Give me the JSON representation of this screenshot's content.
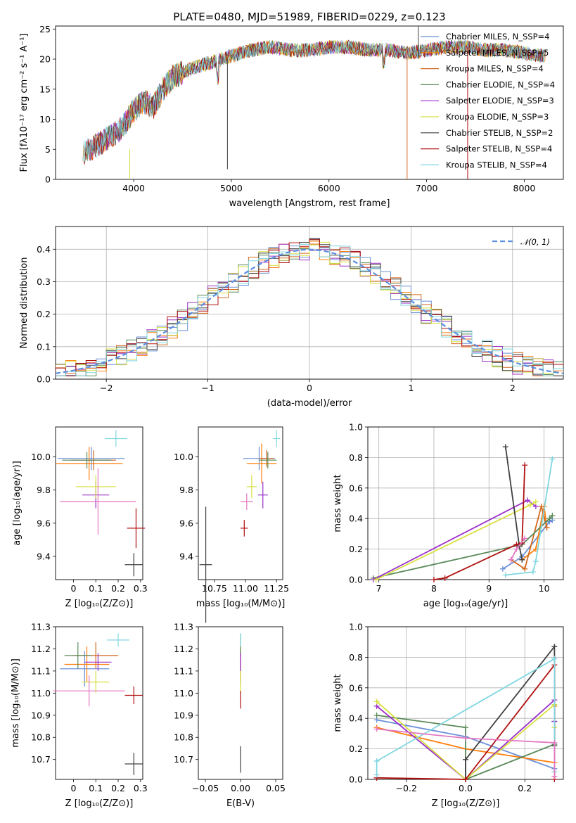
{
  "chart_data": [
    {
      "type": "line",
      "title": "PLATE=0480, MJD=51989, FIBERID=0229, z=0.123",
      "xlabel": "wavelength [Angstrom, rest frame]",
      "ylabel": "Flux [fλ10⁻¹⁷ erg cm⁻² s⁻¹ A⁻¹]",
      "xlim": [
        3200,
        8400
      ],
      "ylim": [
        0,
        25.5
      ],
      "xticks": [
        4000,
        5000,
        6000,
        7000,
        8000
      ],
      "yticks": [
        0,
        5,
        10,
        15,
        20,
        25
      ],
      "grid": false,
      "legend_loc": "upper right",
      "spectrum_anchors": {
        "x": [
          3500,
          3600,
          3700,
          3800,
          3900,
          4000,
          4100,
          4200,
          4300,
          4400,
          4600,
          4800,
          5000,
          5200,
          5400,
          5600,
          5800,
          6000,
          6200,
          6400,
          6600,
          6800,
          7000,
          7200,
          7400,
          7600,
          7800,
          8000,
          8200
        ],
        "y": [
          4.5,
          5.5,
          6.5,
          7.5,
          9,
          11.5,
          13,
          12,
          15,
          17,
          18.5,
          19.5,
          20.5,
          21.5,
          22,
          21.5,
          21.5,
          22,
          22,
          21.5,
          21.5,
          21,
          21.5,
          22,
          22,
          21.5,
          21.5,
          21,
          20.5
        ]
      },
      "series": [
        {
          "name": "Chabrier MILES, N_SSP=4",
          "color": "#6a8fd8"
        },
        {
          "name": "Salpeter MILES, N_SSP=5",
          "color": "#ff7f0e"
        },
        {
          "name": "Kroupa MILES, N_SSP=4",
          "color": "#d2691e"
        },
        {
          "name": "Chabrier ELODIE, N_SSP=4",
          "color": "#5a8a5a"
        },
        {
          "name": "Salpeter ELODIE, N_SSP=3",
          "color": "#9b30c8"
        },
        {
          "name": "Kroupa ELODIE, N_SSP=3",
          "color": "#d8e040"
        },
        {
          "name": "Chabrier STELIB, N_SSP=2",
          "color": "#404040"
        },
        {
          "name": "Salpeter STELIB, N_SSP=4",
          "color": "#b01010"
        },
        {
          "name": "Kroupa STELIB, N_SSP=4",
          "color": "#7fd6e0"
        }
      ]
    },
    {
      "type": "step",
      "xlabel": "(data-model)/error",
      "ylabel": "Normed distribution",
      "xlim": [
        -2.5,
        2.5
      ],
      "ylim": [
        0,
        0.47
      ],
      "xticks": [
        -2,
        -1,
        0,
        1,
        2
      ],
      "yticks": [
        0.0,
        0.1,
        0.2,
        0.3,
        0.4
      ],
      "grid": true,
      "legend": "𝒩(0, 1)",
      "legend_loc": "upper right",
      "reference": {
        "name": "N(0,1)",
        "color": "#5b8ee0",
        "style": "dashed"
      },
      "bin_width": 0.1,
      "series_colors": [
        "#6a8fd8",
        "#ff7f0e",
        "#d2691e",
        "#5a8a5a",
        "#9b30c8",
        "#d8e040",
        "#404040",
        "#b01010",
        "#7fd6e0"
      ]
    },
    {
      "type": "errorbar",
      "xlabel": "Z [log₁₀(Z/Z⊙)]",
      "ylabel": "age  [log₁₀(age/yr)]",
      "xlim": [
        -0.08,
        0.31
      ],
      "ylim": [
        9.26,
        10.18
      ],
      "xticks": [
        0.0,
        0.1,
        0.2,
        0.3
      ],
      "yticks": [
        9.4,
        9.6,
        9.8,
        10.0
      ],
      "points": [
        {
          "x": 0.08,
          "xerr": 0.15,
          "y": 9.99,
          "yerr": 0.07,
          "color": "#6a8fd8"
        },
        {
          "x": 0.07,
          "xerr": 0.15,
          "y": 9.96,
          "yerr": 0.1,
          "color": "#ff7f0e"
        },
        {
          "x": 0.09,
          "xerr": 0.1,
          "y": 9.98,
          "yerr": 0.06,
          "color": "#d2691e"
        },
        {
          "x": 0.06,
          "xerr": 0.11,
          "y": 9.98,
          "yerr": 0.05,
          "color": "#5a8a5a"
        },
        {
          "x": 0.1,
          "xerr": 0.06,
          "y": 9.77,
          "yerr": 0.08,
          "color": "#9b30c8"
        },
        {
          "x": 0.1,
          "xerr": 0.09,
          "y": 9.82,
          "yerr": 0.07,
          "color": "#d8e040"
        },
        {
          "x": 0.27,
          "xerr": 0.04,
          "y": 9.35,
          "yerr": 0.07,
          "color": "#404040"
        },
        {
          "x": 0.28,
          "xerr": 0.04,
          "y": 9.57,
          "yerr": 0.12,
          "color": "#b01010"
        },
        {
          "x": 0.19,
          "xerr": 0.05,
          "y": 10.11,
          "yerr": 0.05,
          "color": "#7fd6e0"
        },
        {
          "x": 0.11,
          "xerr": 0.17,
          "y": 9.73,
          "yerr": 0.2,
          "color": "#e377c2"
        }
      ]
    },
    {
      "type": "errorbar",
      "xlabel": "mass [log₁₀(M/M⊙)]",
      "xlim": [
        10.62,
        11.3
      ],
      "ylim": [
        9.26,
        10.18
      ],
      "xticks": [
        10.75,
        11.0,
        11.25
      ],
      "xticklabels": [
        "10.75",
        "11.00",
        "11.25"
      ],
      "yticks": [
        9.4,
        9.6,
        9.8,
        10.0
      ],
      "points": [
        {
          "x": 11.11,
          "xerr": 0.13,
          "y": 9.99,
          "yerr": 0.07,
          "color": "#6a8fd8"
        },
        {
          "x": 11.13,
          "xerr": 0.12,
          "y": 9.96,
          "yerr": 0.12,
          "color": "#ff7f0e"
        },
        {
          "x": 11.17,
          "xerr": 0.06,
          "y": 9.99,
          "yerr": 0.05,
          "color": "#d2691e"
        },
        {
          "x": 11.18,
          "xerr": 0.07,
          "y": 9.98,
          "yerr": 0.05,
          "color": "#5a8a5a"
        },
        {
          "x": 11.14,
          "xerr": 0.04,
          "y": 9.77,
          "yerr": 0.08,
          "color": "#9b30c8"
        },
        {
          "x": 11.05,
          "xerr": 0.04,
          "y": 9.82,
          "yerr": 0.07,
          "color": "#d8e040"
        },
        {
          "x": 10.68,
          "xerr": 0.05,
          "y": 9.35,
          "yerr": 0.35,
          "color": "#404040"
        },
        {
          "x": 10.99,
          "xerr": 0.03,
          "y": 9.57,
          "yerr": 0.05,
          "color": "#b01010"
        },
        {
          "x": 11.25,
          "xerr": 0.03,
          "y": 10.11,
          "yerr": 0.05,
          "color": "#7fd6e0"
        },
        {
          "x": 11.01,
          "xerr": 0.05,
          "y": 9.73,
          "yerr": 0.05,
          "color": "#e377c2"
        }
      ]
    },
    {
      "type": "line",
      "xlabel": "age  [log₁₀(age/yr)]",
      "ylabel": "mass weight",
      "xlim": [
        6.8,
        10.35
      ],
      "ylim": [
        0,
        1.0
      ],
      "xticks": [
        7,
        8,
        9,
        10
      ],
      "yticks": [
        0.0,
        0.2,
        0.4,
        0.6,
        0.8,
        1.0
      ],
      "grid": true,
      "series": [
        {
          "color": "#6a8fd8",
          "x": [
            9.25,
            9.6,
            10.1,
            10.15
          ],
          "y": [
            0.07,
            0.15,
            0.38,
            0.39
          ]
        },
        {
          "color": "#ff7f0e",
          "x": [
            9.6,
            9.85,
            10.0,
            10.05
          ],
          "y": [
            0.13,
            0.2,
            0.48,
            0.34
          ]
        },
        {
          "color": "#d2691e",
          "x": [
            9.4,
            9.65,
            9.95,
            10.05
          ],
          "y": [
            0.13,
            0.07,
            0.48,
            0.34
          ]
        },
        {
          "color": "#5a8a5a",
          "x": [
            6.9,
            9.6,
            10.1,
            10.15
          ],
          "y": [
            0.01,
            0.23,
            0.4,
            0.42
          ]
        },
        {
          "color": "#9b30c8",
          "x": [
            6.9,
            9.7,
            9.85
          ],
          "y": [
            0.0,
            0.52,
            0.48
          ]
        },
        {
          "color": "#d8e040",
          "x": [
            6.95,
            9.75,
            9.85
          ],
          "y": [
            0.0,
            0.49,
            0.51
          ]
        },
        {
          "color": "#404040",
          "x": [
            9.3,
            9.55,
            9.6
          ],
          "y": [
            0.87,
            0.22,
            0.13
          ]
        },
        {
          "color": "#b01010",
          "x": [
            8.0,
            8.2,
            9.5,
            9.6,
            9.65
          ],
          "y": [
            0.0,
            0.01,
            0.23,
            0.24,
            0.75
          ]
        },
        {
          "color": "#7fd6e0",
          "x": [
            9.3,
            9.8,
            9.85,
            10.15
          ],
          "y": [
            0.03,
            0.05,
            0.12,
            0.79
          ]
        },
        {
          "color": "#e377c2",
          "x": [
            9.4,
            9.5,
            9.65
          ],
          "y": [
            0.13,
            0.2,
            0.27
          ]
        }
      ]
    },
    {
      "type": "errorbar",
      "xlabel": "Z [log₁₀(Z/Z⊙)]",
      "ylabel": "mass [log₁₀(M/M⊙)]",
      "xlim": [
        -0.08,
        0.31
      ],
      "ylim": [
        10.61,
        11.3
      ],
      "xticks": [
        0.0,
        0.1,
        0.2,
        0.3
      ],
      "yticks": [
        10.7,
        10.8,
        10.9,
        11.0,
        11.1,
        11.2,
        11.3
      ],
      "points": [
        {
          "x": 0.05,
          "xerr": 0.11,
          "y": 11.11,
          "yerr": 0.08,
          "color": "#6a8fd8"
        },
        {
          "x": 0.06,
          "xerr": 0.1,
          "y": 11.13,
          "yerr": 0.08,
          "color": "#ff7f0e"
        },
        {
          "x": 0.1,
          "xerr": 0.1,
          "y": 11.17,
          "yerr": 0.06,
          "color": "#d2691e"
        },
        {
          "x": 0.02,
          "xerr": 0.06,
          "y": 11.17,
          "yerr": 0.06,
          "color": "#5a8a5a"
        },
        {
          "x": 0.11,
          "xerr": 0.06,
          "y": 11.14,
          "yerr": 0.04,
          "color": "#9b30c8"
        },
        {
          "x": 0.1,
          "xerr": 0.06,
          "y": 11.05,
          "yerr": 0.05,
          "color": "#d8e040"
        },
        {
          "x": 0.27,
          "xerr": 0.04,
          "y": 10.68,
          "yerr": 0.05,
          "color": "#404040"
        },
        {
          "x": 0.27,
          "xerr": 0.04,
          "y": 10.99,
          "yerr": 0.04,
          "color": "#b01010"
        },
        {
          "x": 0.2,
          "xerr": 0.05,
          "y": 11.24,
          "yerr": 0.03,
          "color": "#7fd6e0"
        },
        {
          "x": 0.07,
          "xerr": 0.16,
          "y": 11.01,
          "yerr": 0.07,
          "color": "#e377c2"
        }
      ]
    },
    {
      "type": "errorbar",
      "xlabel": "E(B-V)",
      "xlim": [
        -0.06,
        0.06
      ],
      "ylim": [
        10.61,
        11.3
      ],
      "xticks": [
        -0.05,
        0.0,
        0.05
      ],
      "xticklabels": [
        "−0.05",
        "0.00",
        "0.05"
      ],
      "yticks": [
        10.7,
        10.8,
        10.9,
        11.0,
        11.1,
        11.2,
        11.3
      ],
      "points": [
        {
          "x": 0.0,
          "xerr": 0.0,
          "y": 11.11,
          "yerr": 0.08,
          "color": "#6a8fd8"
        },
        {
          "x": 0.0,
          "xerr": 0.0,
          "y": 11.13,
          "yerr": 0.08,
          "color": "#ff7f0e"
        },
        {
          "x": 0.0,
          "xerr": 0.0,
          "y": 11.22,
          "yerr": 0.05,
          "color": "#5a8a5a"
        },
        {
          "x": 0.0,
          "xerr": 0.0,
          "y": 11.14,
          "yerr": 0.04,
          "color": "#9b30c8"
        },
        {
          "x": 0.0,
          "xerr": 0.0,
          "y": 11.05,
          "yerr": 0.05,
          "color": "#d8e040"
        },
        {
          "x": 0.0,
          "xerr": 0.0,
          "y": 10.7,
          "yerr": 0.06,
          "color": "#404040"
        },
        {
          "x": 0.0,
          "xerr": 0.0,
          "y": 10.97,
          "yerr": 0.04,
          "color": "#b01010"
        },
        {
          "x": 0.0,
          "xerr": 0.0,
          "y": 11.24,
          "yerr": 0.03,
          "color": "#7fd6e0"
        }
      ]
    },
    {
      "type": "line",
      "xlabel": "Z [log₁₀(Z/Z⊙)]",
      "ylabel": "mass weight",
      "xlim": [
        -0.33,
        0.33
      ],
      "ylim": [
        0,
        1.0
      ],
      "xticks": [
        -0.2,
        0.0,
        0.2
      ],
      "xticklabels": [
        "−0.2",
        "0.0",
        "0.2"
      ],
      "yticks": [
        0.0,
        0.2,
        0.4,
        0.6,
        0.8,
        1.0
      ],
      "grid": true,
      "series": [
        {
          "color": "#6a8fd8",
          "x": [
            -0.3,
            0.0,
            0.3,
            0.3
          ],
          "y": [
            0.39,
            0.28,
            0.07,
            0.38
          ]
        },
        {
          "color": "#ff7f0e",
          "x": [
            -0.3,
            0.0,
            0.3,
            0.3
          ],
          "y": [
            0.34,
            0.2,
            0.11,
            0.48
          ]
        },
        {
          "color": "#5a8a5a",
          "x": [
            -0.3,
            0.0,
            0.0,
            0.3
          ],
          "y": [
            0.42,
            0.34,
            0.0,
            0.23
          ]
        },
        {
          "color": "#9b30c8",
          "x": [
            -0.3,
            0.0,
            0.3,
            0.3
          ],
          "y": [
            0.48,
            0.0,
            0.52,
            0.38
          ]
        },
        {
          "color": "#d8e040",
          "x": [
            -0.3,
            0.0,
            0.3,
            0.3
          ],
          "y": [
            0.51,
            0.0,
            0.49,
            0.34
          ]
        },
        {
          "color": "#404040",
          "x": [
            0.0,
            0.0,
            0.3,
            0.3
          ],
          "y": [
            0.0,
            0.13,
            0.87,
            0.22
          ]
        },
        {
          "color": "#b01010",
          "x": [
            -0.3,
            0.0,
            0.3,
            0.3
          ],
          "y": [
            0.01,
            0.0,
            0.75,
            0.0
          ]
        },
        {
          "color": "#7fd6e0",
          "x": [
            -0.3,
            -0.3,
            0.3,
            0.3
          ],
          "y": [
            0.03,
            0.12,
            0.79,
            0.05
          ]
        },
        {
          "color": "#e377c2",
          "x": [
            -0.3,
            0.0,
            0.3,
            0.3
          ],
          "y": [
            0.33,
            0.27,
            0.24,
            0.02
          ]
        }
      ]
    }
  ]
}
